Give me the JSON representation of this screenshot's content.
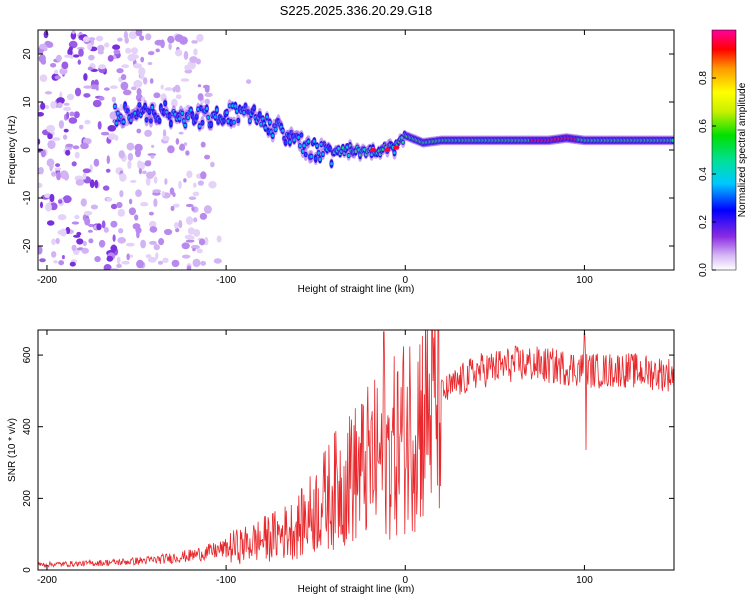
{
  "title": "S225.2025.336.20.29.G18",
  "spectrogram": {
    "type": "heatmap",
    "xlabel": "Height of straight line (km)",
    "ylabel": "Frequency (Hz)",
    "xlim": [
      -205,
      150
    ],
    "ylim": [
      -25,
      25
    ],
    "xticks": [
      -200,
      -100,
      0,
      100
    ],
    "yticks": [
      -20,
      -10,
      0,
      10,
      20
    ],
    "noise_region_km": [
      -205,
      -120
    ],
    "ridge": {
      "x": [
        -160,
        -140,
        -120,
        -100,
        -90,
        -80,
        -70,
        -60,
        -50,
        -40,
        -30,
        -20,
        -10,
        -5,
        0,
        10,
        20,
        40,
        60,
        80,
        90,
        100,
        120,
        150
      ],
      "freq": [
        7,
        8,
        7,
        7,
        8,
        6,
        4,
        2,
        0,
        -1,
        0,
        0,
        0,
        0.5,
        3,
        1.5,
        2,
        2,
        2,
        2,
        2.5,
        2,
        2,
        2
      ]
    },
    "colorbar": {
      "label": "Normalized spectral amplitude",
      "ticks": [
        0.0,
        0.2,
        0.4,
        0.6,
        0.8
      ],
      "range": [
        0,
        1
      ]
    }
  },
  "snr": {
    "type": "line",
    "xlabel": "Height of straight line (km)",
    "ylabel": "SNR (10 * v/v)",
    "xlim": [
      -205,
      150
    ],
    "ylim": [
      0,
      670
    ],
    "xticks": [
      -200,
      -100,
      0,
      100
    ],
    "yticks": [
      0,
      200,
      400,
      600
    ],
    "color": "#e8282c",
    "envelope": {
      "x": [
        -205,
        -180,
        -160,
        -140,
        -120,
        -100,
        -90,
        -80,
        -70,
        -60,
        -50,
        -40,
        -30,
        -20,
        -10,
        0,
        10,
        20,
        30,
        40,
        50,
        60,
        70,
        80,
        90,
        100,
        110,
        120,
        130,
        140,
        150
      ],
      "y": [
        15,
        18,
        22,
        28,
        40,
        60,
        70,
        85,
        100,
        120,
        170,
        220,
        260,
        300,
        320,
        380,
        440,
        490,
        525,
        555,
        565,
        575,
        575,
        570,
        565,
        560,
        555,
        560,
        555,
        550,
        545
      ]
    },
    "spikes": [
      {
        "x": -12,
        "y": 665
      },
      {
        "x": -30,
        "y": 420
      },
      {
        "x": 100,
        "y": 660
      },
      {
        "x": 101,
        "y": 335
      }
    ]
  }
}
